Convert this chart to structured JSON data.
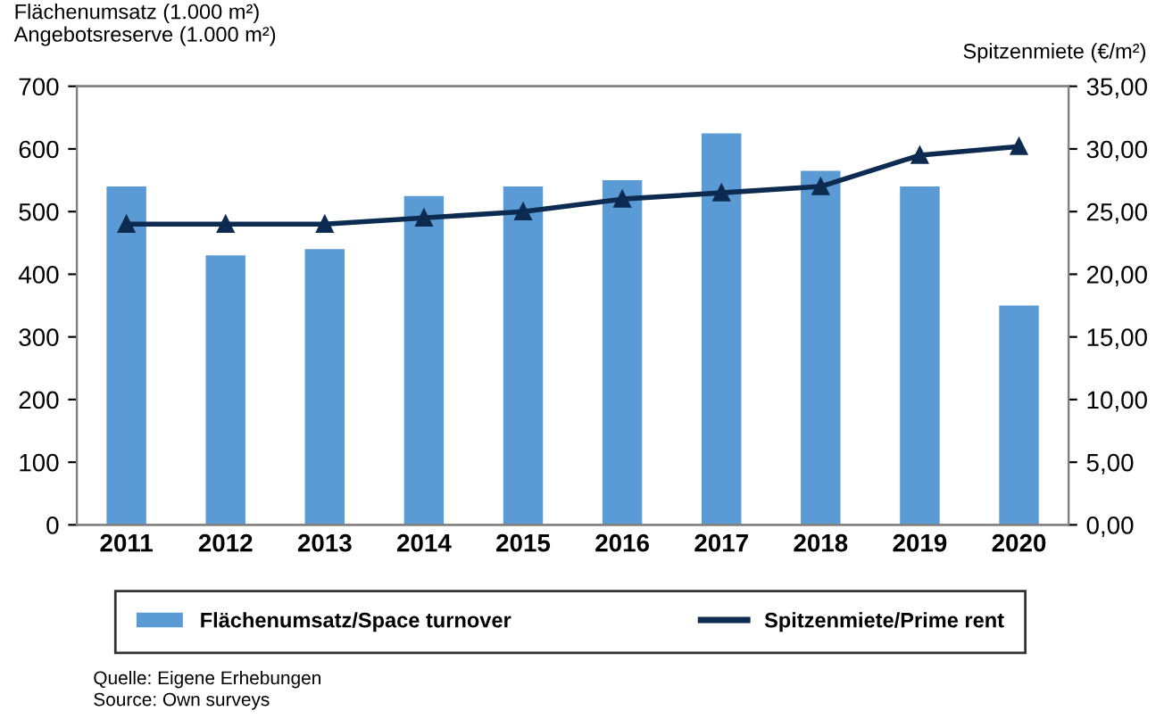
{
  "chart_data": {
    "type": "bar",
    "ylabel": "Flächenumsatz (1.000 m²)\nAngebotsreserve (1.000 m²)",
    "y2label": "Spitzenmiete (€/m²)",
    "categories": [
      "2011",
      "2012",
      "2013",
      "2014",
      "2015",
      "2016",
      "2017",
      "2018",
      "2019",
      "2020"
    ],
    "series": [
      {
        "name": "Flächenumsatz/Space turnover",
        "color": "#5b9bd5",
        "values": [
          540,
          430,
          440,
          525,
          540,
          550,
          625,
          565,
          540,
          350
        ]
      },
      {
        "name": "Spitzenmiete/Prime rent",
        "type": "line",
        "axis": "y2",
        "color": "#0d2b50",
        "marker": "triangle",
        "values": [
          24,
          24,
          24,
          24.5,
          25,
          26,
          26.5,
          27,
          29.5,
          30.2
        ]
      }
    ],
    "ylim": [
      0,
      700
    ],
    "yticks": [
      0,
      100,
      200,
      300,
      400,
      500,
      600,
      700
    ],
    "y2lim": [
      0,
      35
    ],
    "y2ticks": [
      {
        "value": 0,
        "label": "0,00"
      },
      {
        "value": 5,
        "label": "5,00"
      },
      {
        "value": 10,
        "label": "10,00"
      },
      {
        "value": 15,
        "label": "15,00"
      },
      {
        "value": 20,
        "label": "20,00"
      },
      {
        "value": 25,
        "label": "25,00"
      },
      {
        "value": 30,
        "label": "30,00"
      },
      {
        "value": 35,
        "label": "35,00"
      }
    ],
    "grid": false,
    "legend": "bottom",
    "annotations": [
      "Quelle: Eigene Erhebungen",
      "Source: Own surveys"
    ]
  }
}
